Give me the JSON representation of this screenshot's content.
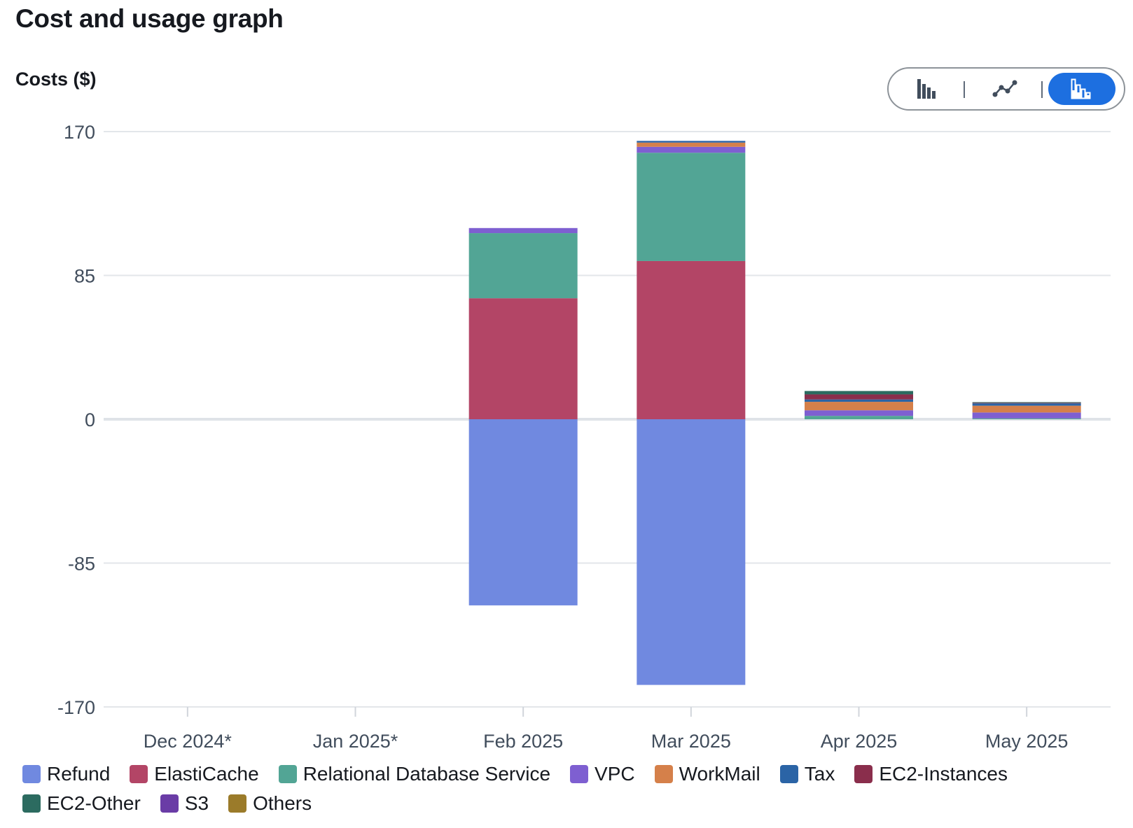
{
  "header": {
    "title": "Cost and usage graph"
  },
  "chart_controls": {
    "options": [
      {
        "name": "bar-chart-view",
        "icon": "bar-chart-icon",
        "active": false
      },
      {
        "name": "line-chart-view",
        "icon": "line-chart-icon",
        "active": false
      },
      {
        "name": "stacked-bar-chart-view",
        "icon": "stacked-bar-chart-icon",
        "active": true
      }
    ]
  },
  "chart_data": {
    "type": "bar",
    "stacked": true,
    "title": "",
    "ylabel": "Costs ($)",
    "xlabel": "",
    "ylim": [
      -170,
      170
    ],
    "yticks": [
      170,
      85,
      0,
      -85,
      -170
    ],
    "grid": true,
    "legend_position": "bottom",
    "categories": [
      "Dec 2024*",
      "Jan 2025*",
      "Feb 2025",
      "Mar 2025",
      "Apr 2025",
      "May 2025"
    ],
    "series": [
      {
        "name": "Refund",
        "color": "#7089e0",
        "values": [
          0,
          0,
          -110,
          -157,
          0,
          0
        ]
      },
      {
        "name": "ElastiCache",
        "color": "#b34566",
        "values": [
          0,
          0,
          71.5,
          93.5,
          0,
          0
        ]
      },
      {
        "name": "Relational Database Service",
        "color": "#52a595",
        "values": [
          0,
          0,
          38.5,
          64,
          2,
          0.5
        ]
      },
      {
        "name": "VPC",
        "color": "#7e5fd1",
        "values": [
          0,
          0,
          3,
          3.5,
          3.3,
          3.5
        ]
      },
      {
        "name": "WorkMail",
        "color": "#d5804a",
        "values": [
          0,
          0,
          0,
          2.5,
          5,
          4
        ]
      },
      {
        "name": "Tax",
        "color": "#2b64a6",
        "values": [
          0,
          0,
          0,
          1,
          1.4,
          1.4
        ]
      },
      {
        "name": "EC2-Instances",
        "color": "#8a2e4c",
        "values": [
          0,
          0,
          0,
          0,
          3,
          0.3
        ]
      },
      {
        "name": "EC2-Other",
        "color": "#2c6b60",
        "values": [
          0,
          0,
          0,
          0,
          2,
          0.4
        ]
      },
      {
        "name": "S3",
        "color": "#6a3ca6",
        "values": [
          0,
          0,
          0,
          0,
          0,
          0
        ]
      },
      {
        "name": "Others",
        "color": "#9b7b2a",
        "values": [
          0,
          0,
          0,
          0,
          0,
          0
        ]
      }
    ]
  }
}
